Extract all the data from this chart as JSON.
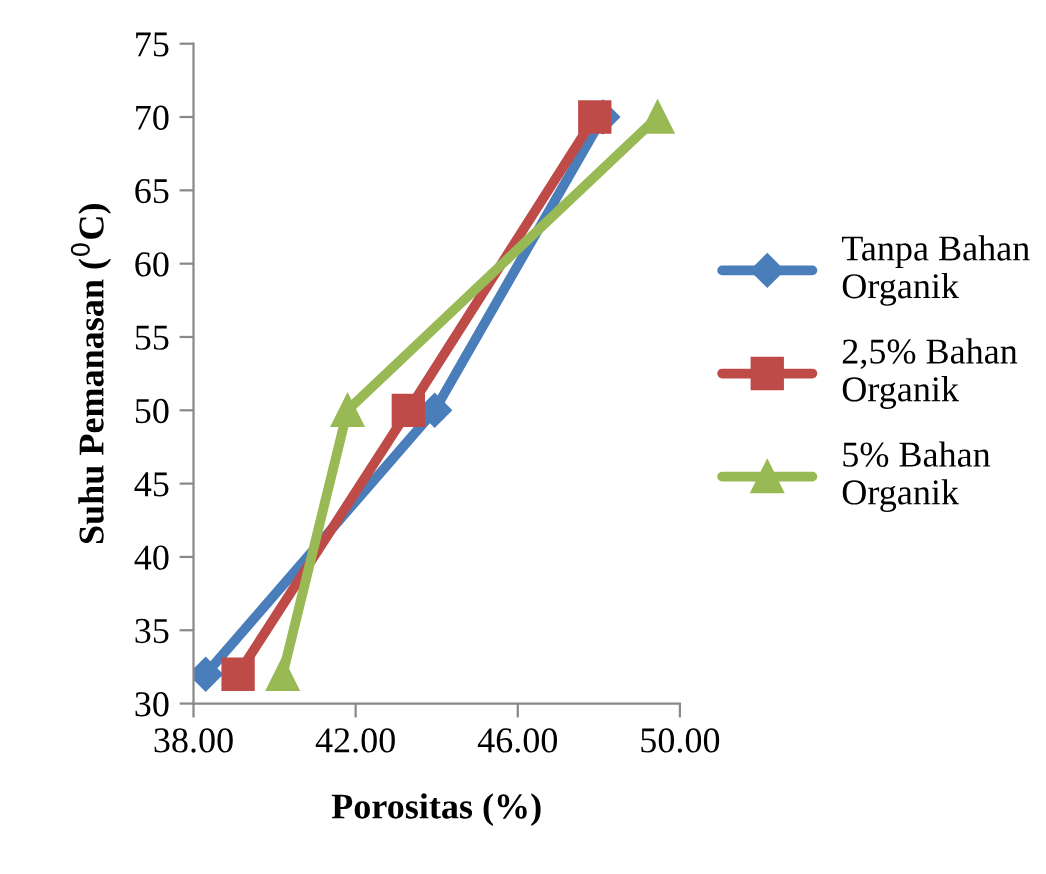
{
  "chart_data": {
    "type": "line",
    "xlabel": "Porositas (%)",
    "ylabel": "Suhu Pemanasan ($^{0}$C)",
    "xlim": [
      38,
      50
    ],
    "xticks": [
      {
        "value": 38,
        "label": "38.00"
      },
      {
        "value": 42,
        "label": "42.00"
      },
      {
        "value": 46,
        "label": "46.00"
      },
      {
        "value": 50,
        "label": "50.00"
      }
    ],
    "ylim": [
      30,
      75
    ],
    "yticks": [
      30,
      35,
      40,
      45,
      50,
      55,
      60,
      65,
      70,
      75
    ],
    "grid": false,
    "legend": "right",
    "series": [
      {
        "name": "Tanpa Bahan Organik",
        "color": "#4a7ebb",
        "marker": "diamond",
        "x": [
          38.3,
          43.95,
          48.1
        ],
        "values": [
          32,
          50,
          70
        ]
      },
      {
        "name": "2,5% Bahan Organik",
        "color": "#be4b48",
        "marker": "square",
        "x": [
          39.1,
          43.3,
          47.9
        ],
        "values": [
          32,
          50,
          70
        ]
      },
      {
        "name": "5% Bahan Organik",
        "color": "#98b954",
        "marker": "triangle",
        "x": [
          40.2,
          41.8,
          49.45
        ],
        "values": [
          32,
          50,
          70
        ]
      }
    ]
  }
}
